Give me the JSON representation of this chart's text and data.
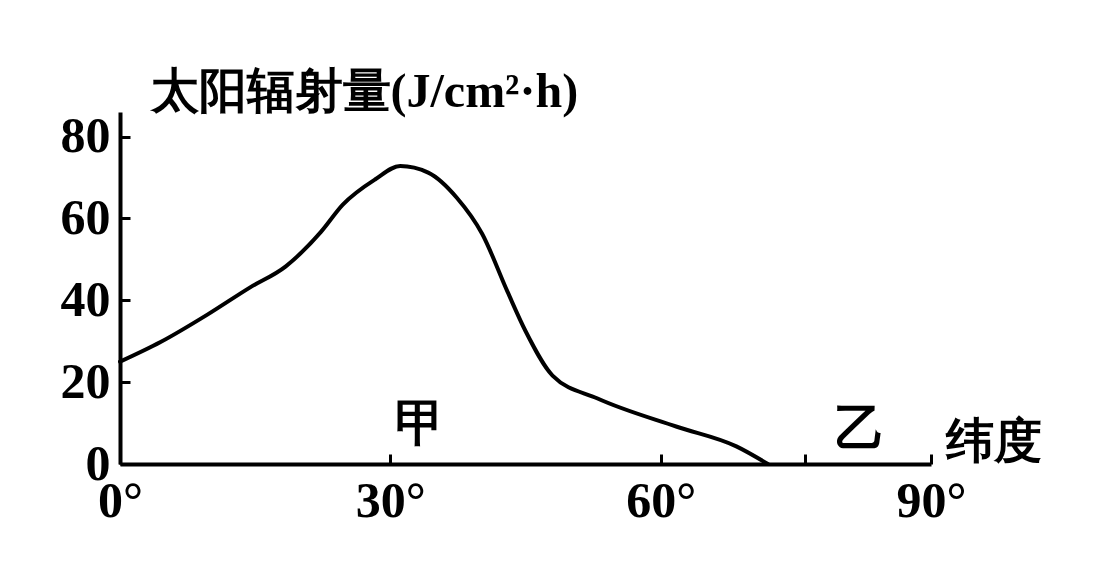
{
  "chart_data": {
    "type": "line",
    "ylabel": "太阳辐射量(J/cm²·h)",
    "xlabel": "纬度",
    "xlim": [
      0,
      90
    ],
    "ylim": [
      0,
      86
    ],
    "xticks": [
      {
        "value": 0,
        "label": "0°"
      },
      {
        "value": 30,
        "label": "30°"
      },
      {
        "value": 60,
        "label": "60°"
      },
      {
        "value": 76,
        "label": null
      },
      {
        "value": 90,
        "label": "90°"
      }
    ],
    "yticks": [
      0,
      20,
      40,
      60,
      80
    ],
    "grid": false,
    "marker": "none",
    "line_style": "solid",
    "series": [
      {
        "color": "#000000",
        "x": [
          0,
          4.5,
          9.7,
          14.4,
          18.4,
          22.3,
          24.7,
          28.3,
          31.1,
          34.2,
          37.4,
          40.2,
          43,
          45,
          48,
          53,
          61.8,
          68.4,
          71.9
        ],
        "values": [
          25,
          29.8,
          36.5,
          43.1,
          48.3,
          56.7,
          63.3,
          69.5,
          72.8,
          71.2,
          65,
          56.2,
          42.1,
          32.5,
          21.6,
          16,
          9.1,
          4.3,
          0
        ]
      }
    ],
    "annotations": [
      "甲",
      "乙"
    ]
  }
}
